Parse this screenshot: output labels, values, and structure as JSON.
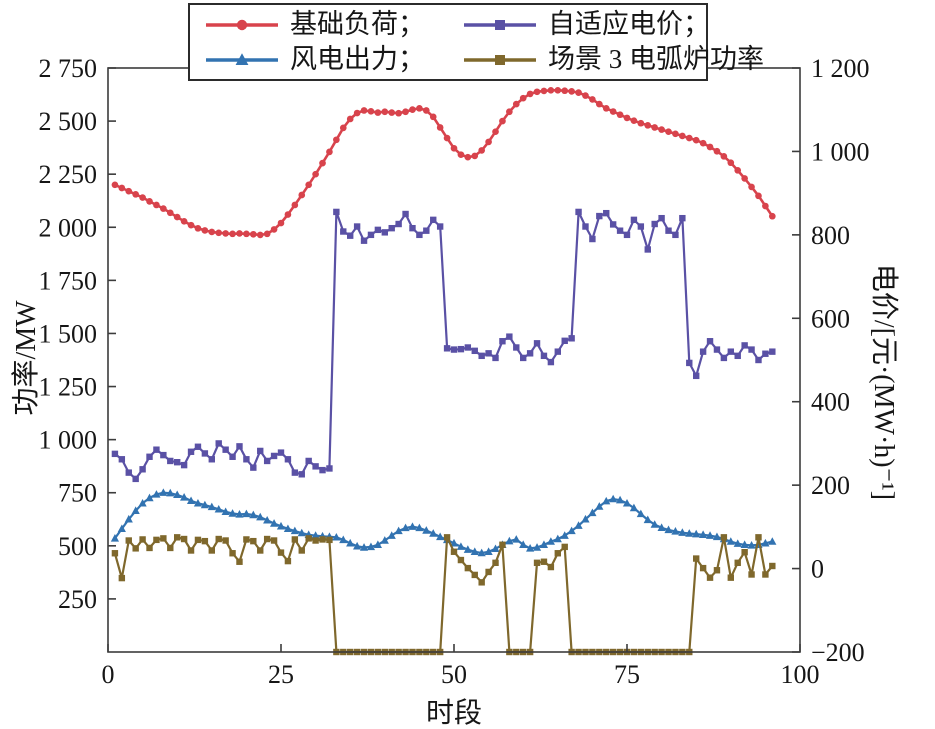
{
  "figure": {
    "x_axis": {
      "label": "时段",
      "tick_values": [
        0,
        25,
        50,
        75,
        100
      ],
      "tick_labels": [
        "0",
        "25",
        "50",
        "75",
        "100"
      ],
      "range": [
        0,
        100
      ]
    },
    "y_left": {
      "label": "功率/MW",
      "tick_values": [
        250,
        500,
        750,
        1000,
        1250,
        1500,
        1750,
        2000,
        2250,
        2500,
        2750
      ],
      "tick_labels": [
        "250",
        "500",
        "750",
        "1 000",
        "1 250",
        "1 500",
        "1 750",
        "2 000",
        "2 250",
        "2 500",
        "2 750"
      ],
      "range": [
        0,
        2750
      ]
    },
    "y_right": {
      "label": "电价/[元·(MW·h)⁻¹]",
      "tick_values": [
        -200,
        0,
        200,
        400,
        600,
        800,
        1000,
        1200
      ],
      "tick_labels": [
        "−200",
        "0",
        "200",
        "400",
        "600",
        "800",
        "1 000",
        "1 200"
      ],
      "range": [
        -200,
        1200
      ]
    },
    "axis_color": "#3c3c3c",
    "text_color": "#161616"
  },
  "chart_data": {
    "type": "line",
    "title": "",
    "xlabel": "时段",
    "ylabel_left": "功率/MW",
    "ylabel_right": "电价/[元·(MW·h)⁻¹]",
    "x_start": 1,
    "x_end": 96,
    "x_range_shown": [
      0,
      100
    ],
    "ylim_left": [
      0,
      2750
    ],
    "ylim_right": [
      -200,
      1200
    ],
    "grid": false,
    "legend_position": "top-center",
    "series": [
      {
        "key": "base-load",
        "name": "基础负荷；",
        "axis": "left",
        "unit": "MW",
        "color": "#d8434c",
        "marker": "circle",
        "values": [
          2200,
          2185,
          2170,
          2155,
          2140,
          2122,
          2105,
          2088,
          2068,
          2048,
          2028,
          2010,
          1995,
          1985,
          1978,
          1974,
          1971,
          1969,
          1971,
          1969,
          1967,
          1964,
          1969,
          1990,
          2020,
          2060,
          2105,
          2152,
          2200,
          2250,
          2302,
          2355,
          2412,
          2468,
          2510,
          2538,
          2550,
          2546,
          2540,
          2544,
          2540,
          2537,
          2544,
          2554,
          2560,
          2550,
          2520,
          2470,
          2420,
          2372,
          2342,
          2330,
          2336,
          2362,
          2402,
          2450,
          2500,
          2544,
          2580,
          2608,
          2628,
          2638,
          2642,
          2645,
          2645,
          2643,
          2640,
          2634,
          2620,
          2602,
          2580,
          2560,
          2545,
          2530,
          2515,
          2502,
          2490,
          2480,
          2470,
          2460,
          2450,
          2440,
          2430,
          2420,
          2410,
          2396,
          2378,
          2358,
          2334,
          2304,
          2268,
          2230,
          2190,
          2148,
          2100,
          2052
        ]
      },
      {
        "key": "adaptive-price",
        "name": "自适应电价；",
        "axis": "right",
        "unit": "元/(MW·h)",
        "color": "#5a51a5",
        "marker": "square",
        "values": [
          275,
          262,
          230,
          215,
          238,
          268,
          285,
          272,
          258,
          255,
          248,
          280,
          292,
          276,
          262,
          300,
          285,
          268,
          293,
          262,
          242,
          282,
          258,
          270,
          278,
          262,
          230,
          226,
          258,
          245,
          236,
          240,
          855,
          808,
          798,
          820,
          786,
          800,
          812,
          806,
          816,
          826,
          850,
          816,
          800,
          810,
          836,
          820,
          528,
          525,
          526,
          530,
          522,
          510,
          516,
          505,
          545,
          556,
          530,
          505,
          516,
          540,
          510,
          495,
          520,
          546,
          552,
          855,
          820,
          790,
          845,
          852,
          825,
          810,
          800,
          836,
          820,
          765,
          826,
          840,
          810,
          800,
          840,
          493,
          462,
          520,
          545,
          525,
          505,
          520,
          510,
          535,
          525,
          500,
          515,
          520
        ]
      },
      {
        "key": "wind-output",
        "name": "风电出力；",
        "axis": "left",
        "unit": "MW",
        "color": "#3273b1",
        "marker": "triangle",
        "values": [
          535,
          580,
          625,
          665,
          700,
          725,
          742,
          750,
          748,
          740,
          728,
          712,
          700,
          692,
          683,
          672,
          660,
          652,
          648,
          650,
          645,
          635,
          620,
          605,
          592,
          580,
          570,
          560,
          552,
          548,
          545,
          543,
          540,
          528,
          512,
          498,
          492,
          495,
          505,
          525,
          548,
          570,
          584,
          590,
          584,
          572,
          558,
          542,
          528,
          512,
          496,
          482,
          472,
          466,
          472,
          486,
          505,
          522,
          530,
          505,
          488,
          492,
          505,
          520,
          532,
          548,
          570,
          595,
          625,
          655,
          685,
          710,
          720,
          715,
          700,
          678,
          650,
          622,
          600,
          585,
          575,
          568,
          562,
          558,
          555,
          552,
          548,
          542,
          532,
          520,
          510,
          505,
          502,
          505,
          512,
          520
        ]
      },
      {
        "key": "scenario3-eaf-power",
        "name": "场景 3 电弧炉功率",
        "axis": "left",
        "unit": "MW",
        "color": "#7f682c",
        "marker": "square",
        "values": [
          465,
          348,
          525,
          488,
          530,
          490,
          528,
          535,
          490,
          540,
          532,
          478,
          528,
          522,
          478,
          532,
          525,
          465,
          425,
          530,
          522,
          478,
          532,
          525,
          468,
          428,
          530,
          478,
          535,
          525,
          530,
          528,
          0,
          0,
          0,
          0,
          0,
          0,
          0,
          0,
          0,
          0,
          0,
          0,
          0,
          0,
          0,
          0,
          540,
          472,
          433,
          395,
          363,
          328,
          377,
          420,
          505,
          0,
          0,
          0,
          0,
          420,
          425,
          400,
          465,
          495,
          0,
          0,
          0,
          0,
          0,
          0,
          0,
          0,
          0,
          0,
          0,
          0,
          0,
          0,
          0,
          0,
          0,
          0,
          440,
          395,
          350,
          385,
          540,
          350,
          420,
          470,
          365,
          540,
          365,
          405
        ]
      }
    ]
  }
}
